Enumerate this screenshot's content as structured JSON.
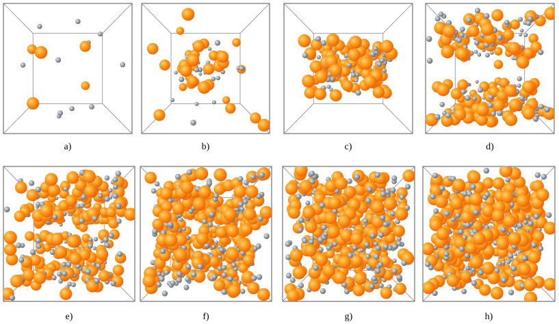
{
  "panels": [
    {
      "label": "a)"
    },
    {
      "label": "b)"
    },
    {
      "label": "c)"
    },
    {
      "label": "d)"
    },
    {
      "label": "e)"
    },
    {
      "label": "f)"
    },
    {
      "label": "g)"
    },
    {
      "label": "h)"
    }
  ]
}
